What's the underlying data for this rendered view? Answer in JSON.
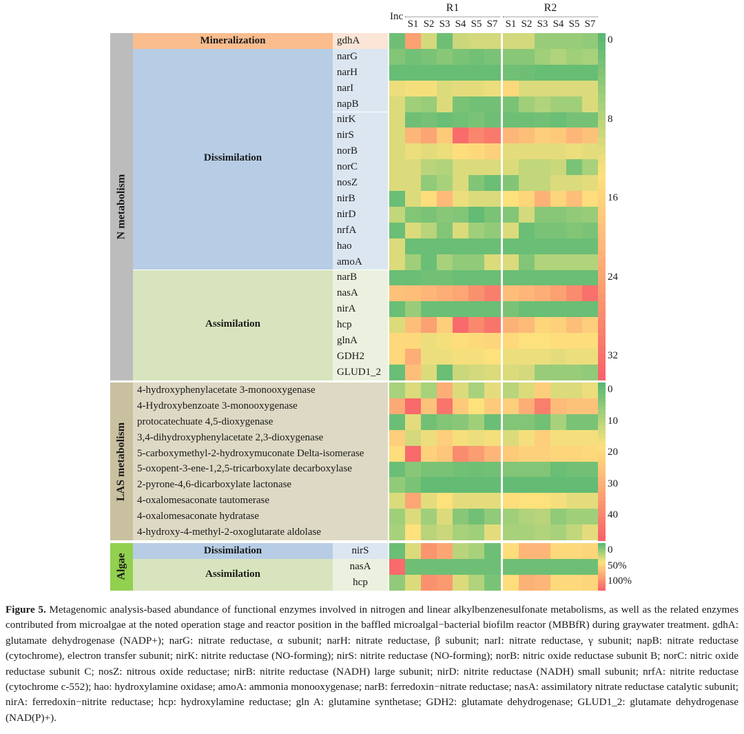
{
  "chart_data": {
    "type": "heatmap",
    "title": "",
    "columns": {
      "inc": "Inc",
      "groups": [
        {
          "name": "R1",
          "stages": [
            "S1",
            "S2",
            "S3",
            "S4",
            "S5",
            "S7"
          ]
        },
        {
          "name": "R2",
          "stages": [
            "S1",
            "S2",
            "S3",
            "S4",
            "S5",
            "S7"
          ]
        }
      ]
    },
    "colorscale": [
      "#5bb973",
      "#a8d17b",
      "#fde17c",
      "#fdba79",
      "#f9916e",
      "#f8636b"
    ],
    "panels": [
      {
        "name": "N metabolism",
        "color": "#bcbcbc",
        "legend": {
          "ticks": [
            "0",
            "8",
            "16",
            "24",
            "32"
          ],
          "range": [
            0,
            35
          ]
        },
        "subgroups": [
          {
            "name": "Mineralization",
            "color": "#f9bd8e",
            "gene_bg": "#fbe5d6",
            "rows": [
              "gdhA"
            ]
          },
          {
            "name": "Dissimilation",
            "color": "#b7cde5",
            "gene_bg": "#dbe6f1",
            "rows": [
              "narG",
              "narH",
              "narI",
              "napB",
              "nirK",
              "nirS",
              "norB",
              "norC",
              "nosZ",
              "nirB",
              "nirD",
              "nrfA",
              "hao",
              "amoA"
            ]
          },
          {
            "name": "Assimilation",
            "color": "#d8e4bd",
            "gene_bg": "#ebf1de",
            "rows": [
              "narB",
              "nasA",
              "nirA",
              "hcp",
              "glnA",
              "GDH2",
              "GLUD1_2"
            ]
          }
        ],
        "values": [
          [
            0.05,
            0.72,
            0.3,
            0.05,
            0.28,
            0.3,
            0.3,
            0.3,
            0.3,
            0.16,
            0.16,
            0.16,
            0.14
          ],
          [
            0.1,
            0.06,
            0.08,
            0.12,
            0.08,
            0.06,
            0.08,
            0.12,
            0.12,
            0.18,
            0.22,
            0.18,
            0.2
          ],
          [
            0.03,
            0.03,
            0.03,
            0.03,
            0.03,
            0.03,
            0.03,
            0.06,
            0.05,
            0.03,
            0.03,
            0.03,
            0.03
          ],
          [
            0.36,
            0.38,
            0.38,
            0.32,
            0.34,
            0.34,
            0.36,
            0.44,
            0.32,
            0.32,
            0.32,
            0.32,
            0.32
          ],
          [
            0.32,
            0.18,
            0.16,
            0.32,
            0.08,
            0.06,
            0.06,
            0.08,
            0.18,
            0.22,
            0.18,
            0.18,
            0.32
          ],
          [
            0.32,
            0.05,
            0.07,
            0.04,
            0.06,
            0.08,
            0.05,
            0.05,
            0.05,
            0.06,
            0.04,
            0.07,
            0.07
          ],
          [
            0.32,
            0.62,
            0.7,
            0.52,
            0.96,
            0.85,
            0.9,
            0.62,
            0.58,
            0.5,
            0.52,
            0.62,
            0.56
          ],
          [
            0.32,
            0.36,
            0.34,
            0.36,
            0.42,
            0.44,
            0.48,
            0.34,
            0.34,
            0.34,
            0.34,
            0.36,
            0.34
          ],
          [
            0.32,
            0.32,
            0.24,
            0.22,
            0.32,
            0.32,
            0.32,
            0.32,
            0.26,
            0.26,
            0.28,
            0.08,
            0.2
          ],
          [
            0.32,
            0.32,
            0.14,
            0.2,
            0.32,
            0.1,
            0.04,
            0.1,
            0.26,
            0.26,
            0.32,
            0.32,
            0.34
          ],
          [
            0.04,
            0.32,
            0.42,
            0.6,
            0.36,
            0.32,
            0.32,
            0.4,
            0.46,
            0.64,
            0.46,
            0.58,
            0.42
          ],
          [
            0.26,
            0.1,
            0.08,
            0.12,
            0.1,
            0.02,
            0.08,
            0.1,
            0.3,
            0.12,
            0.12,
            0.14,
            0.16
          ],
          [
            0.04,
            0.32,
            0.24,
            0.1,
            0.32,
            0.18,
            0.14,
            0.32,
            0.04,
            0.08,
            0.08,
            0.1,
            0.08
          ],
          [
            0.32,
            0.04,
            0.04,
            0.04,
            0.04,
            0.04,
            0.04,
            0.04,
            0.04,
            0.04,
            0.04,
            0.04,
            0.04
          ],
          [
            0.32,
            0.18,
            0.04,
            0.2,
            0.14,
            0.14,
            0.32,
            0.32,
            0.1,
            0.22,
            0.22,
            0.22,
            0.22
          ],
          [
            0.04,
            0.04,
            0.06,
            0.06,
            0.04,
            0.04,
            0.04,
            0.04,
            0.04,
            0.04,
            0.04,
            0.04,
            0.04
          ],
          [
            0.56,
            0.58,
            0.62,
            0.66,
            0.7,
            0.8,
            0.88,
            0.58,
            0.62,
            0.66,
            0.72,
            0.82,
            0.94
          ],
          [
            0.04,
            0.16,
            0.04,
            0.04,
            0.04,
            0.04,
            0.04,
            0.08,
            0.04,
            0.04,
            0.04,
            0.04,
            0.04
          ],
          [
            0.32,
            0.58,
            0.72,
            0.5,
            0.97,
            0.84,
            0.92,
            0.64,
            0.6,
            0.46,
            0.48,
            0.58,
            0.5
          ],
          [
            0.44,
            0.44,
            0.36,
            0.38,
            0.42,
            0.44,
            0.46,
            0.44,
            0.4,
            0.4,
            0.42,
            0.42,
            0.42
          ],
          [
            0.44,
            0.66,
            0.36,
            0.36,
            0.38,
            0.38,
            0.4,
            0.36,
            0.36,
            0.36,
            0.34,
            0.36,
            0.36
          ],
          [
            0.04,
            0.58,
            0.32,
            0.04,
            0.28,
            0.3,
            0.32,
            0.32,
            0.3,
            0.16,
            0.16,
            0.16,
            0.14
          ]
        ]
      },
      {
        "name": "LAS metabolism",
        "color": "#c9c0a0",
        "row_bg": "#ddd9c4",
        "legend": {
          "ticks": [
            "0",
            "10",
            "20",
            "30",
            "40"
          ],
          "range": [
            0,
            48
          ]
        },
        "rows": [
          "4-hydroxyphenylacetate 3-monooxygenase",
          "4-Hydroxybenzoate 3-monooxygenase",
          "protocatechuate 4,5-dioxygenase",
          "3,4-dihydroxyphenylacetate 2,3-dioxygenase",
          "5-carboxymethyl-2-hydroxymuconate Delta-isomerase",
          "5-oxopent-3-ene-1,2,5-tricarboxylate decarboxylase",
          "2-pyrone-4,6-dicarboxylate lactonase",
          "4-oxalomesaconate tautomerase",
          "4-oxalomesaconate hydratase",
          "4-hydroxy-4-methyl-2-oxoglutarate aldolase"
        ],
        "values": [
          [
            0.2,
            0.32,
            0.2,
            0.66,
            0.32,
            0.2,
            0.34,
            0.24,
            0.32,
            0.5,
            0.32,
            0.32,
            0.36
          ],
          [
            0.68,
            0.97,
            0.56,
            0.92,
            0.52,
            0.4,
            0.52,
            0.5,
            0.66,
            0.88,
            0.6,
            0.56,
            0.56
          ],
          [
            0.04,
            0.34,
            0.06,
            0.1,
            0.12,
            0.18,
            0.04,
            0.1,
            0.1,
            0.06,
            0.2,
            0.08,
            0.08
          ],
          [
            0.5,
            0.3,
            0.36,
            0.5,
            0.38,
            0.36,
            0.38,
            0.32,
            0.38,
            0.5,
            0.38,
            0.38,
            0.38
          ],
          [
            0.42,
            0.97,
            0.48,
            0.54,
            0.82,
            0.74,
            0.62,
            0.52,
            0.48,
            0.48,
            0.46,
            0.46,
            0.44
          ],
          [
            0.04,
            0.12,
            0.08,
            0.08,
            0.06,
            0.05,
            0.06,
            0.1,
            0.1,
            0.1,
            0.04,
            0.06,
            0.06
          ],
          [
            0.14,
            0.08,
            0.02,
            0.02,
            0.02,
            0.02,
            0.02,
            0.02,
            0.02,
            0.02,
            0.02,
            0.02,
            0.02
          ],
          [
            0.32,
            0.7,
            0.34,
            0.4,
            0.34,
            0.34,
            0.34,
            0.42,
            0.4,
            0.4,
            0.38,
            0.34,
            0.34
          ],
          [
            0.18,
            0.32,
            0.18,
            0.32,
            0.12,
            0.06,
            0.14,
            0.18,
            0.22,
            0.24,
            0.14,
            0.18,
            0.18
          ],
          [
            0.2,
            0.4,
            0.24,
            0.28,
            0.2,
            0.18,
            0.34,
            0.2,
            0.2,
            0.22,
            0.2,
            0.26,
            0.34
          ]
        ]
      },
      {
        "name": "Algae",
        "color": "#92d050",
        "legend": {
          "ticks": [
            "0",
            "50%",
            "100%"
          ],
          "range": [
            0,
            1
          ]
        },
        "subgroups": [
          {
            "name": "Dissimilation",
            "color": "#b7cde5",
            "gene_bg": "#dbe6f1",
            "rows": [
              "nirS"
            ]
          },
          {
            "name": "Assimilation",
            "color": "#d8e4bd",
            "gene_bg": "#ebf1de",
            "rows": [
              "nasA",
              "hcp"
            ]
          }
        ],
        "values": [
          [
            0.04,
            0.32,
            0.78,
            0.7,
            0.24,
            0.2,
            0.05,
            0.42,
            0.62,
            0.62,
            0.44,
            0.44,
            0.46
          ],
          [
            0.97,
            0.05,
            0.05,
            0.05,
            0.05,
            0.05,
            0.05,
            0.05,
            0.05,
            0.05,
            0.05,
            0.05,
            0.05
          ],
          [
            0.14,
            0.32,
            0.8,
            0.76,
            0.32,
            0.22,
            0.08,
            0.42,
            0.64,
            0.62,
            0.44,
            0.44,
            0.46
          ]
        ]
      }
    ]
  },
  "caption": {
    "label": "Figure 5.",
    "text": "Metagenomic analysis-based abundance of functional enzymes involved in nitrogen and linear alkylbenzenesulfonate metabolisms, as well as the related enzymes contributed from microalgae at the noted operation stage and reactor position in the baffled microalgal−bacterial biofilm reactor (MBBfR) during graywater treatment. gdhA: glutamate dehydrogenase (NADP+); narG: nitrate reductase, α subunit; narH: nitrate reductase, β subunit; narI: nitrate reductase, γ subunit; napB: nitrate reductase (cytochrome), electron transfer subunit; nirK: nitrite reductase (NO-forming); nirS: nitrite reductase (NO-forming); norB: nitric oxide reductase subunit B; norC: nitric oxide reductase subunit C; nosZ: nitrous oxide reductase; nirB: nitrite reductase (NADH) large subunit; nirD: nitrite reductase (NADH) small subunit; nrfA: nitrite reductase (cytochrome c-552); hao: hydroxylamine oxidase; amoA: ammonia monooxygenase; narB: ferredoxin−nitrate reductase; nasA: assimilatory nitrate reductase catalytic subunit; nirA: ferredoxin−nitrite reductase; hcp: hydroxylamine reductase; gln A: glutamine synthetase; GDH2: glutamate dehydrogenase; GLUD1_2: glutamate dehydrogenase (NAD(P)+)."
  }
}
